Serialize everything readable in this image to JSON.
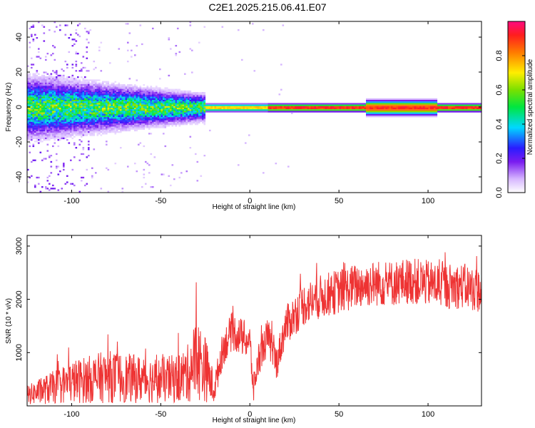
{
  "title": "C2E1.2025.215.06.41.E07",
  "chart_data": [
    {
      "type": "heatmap",
      "xlabel": "Height of straight line (km)",
      "ylabel": "Frequency (Hz)",
      "xlim": [
        -125,
        130
      ],
      "ylim": [
        -49,
        49
      ],
      "xticks": [
        -100,
        -50,
        0,
        50,
        100
      ],
      "yticks": [
        -40,
        -20,
        0,
        20,
        40
      ],
      "colorbar": {
        "label": "Normalized spectral amplitude",
        "range": [
          0,
          1
        ],
        "ticks": [
          "0.0",
          "0.2",
          "0.4",
          "0.6",
          "0.8"
        ]
      },
      "band": {
        "center_hz": 0,
        "strong_signal_from_km": -25,
        "noise_until_km": -25
      }
    },
    {
      "type": "line",
      "xlabel": "Height of straight line (km)",
      "ylabel": "SNR (10 * v/v)",
      "xlim": [
        -125,
        130
      ],
      "ylim": [
        0,
        3200
      ],
      "xticks": [
        -100,
        -50,
        0,
        50,
        100
      ],
      "yticks": [
        1000,
        2000,
        3000
      ],
      "color": "#ee3333",
      "series": [
        {
          "x": [
            -125,
            -110,
            -100,
            -90,
            -80,
            -70,
            -60,
            -50,
            -40,
            -35,
            -30,
            -25,
            -20,
            -15,
            -10,
            -5,
            0,
            2,
            5,
            10,
            15,
            20,
            25,
            30,
            40,
            50,
            60,
            70,
            80,
            90,
            100,
            110,
            120,
            130
          ],
          "y": [
            200,
            350,
            450,
            500,
            550,
            520,
            500,
            480,
            520,
            600,
            900,
            700,
            300,
            1100,
            1400,
            1300,
            1200,
            300,
            900,
            1300,
            800,
            1500,
            1700,
            1900,
            2050,
            2150,
            2250,
            2300,
            2300,
            2350,
            2300,
            2250,
            2250,
            2150
          ]
        }
      ]
    }
  ]
}
